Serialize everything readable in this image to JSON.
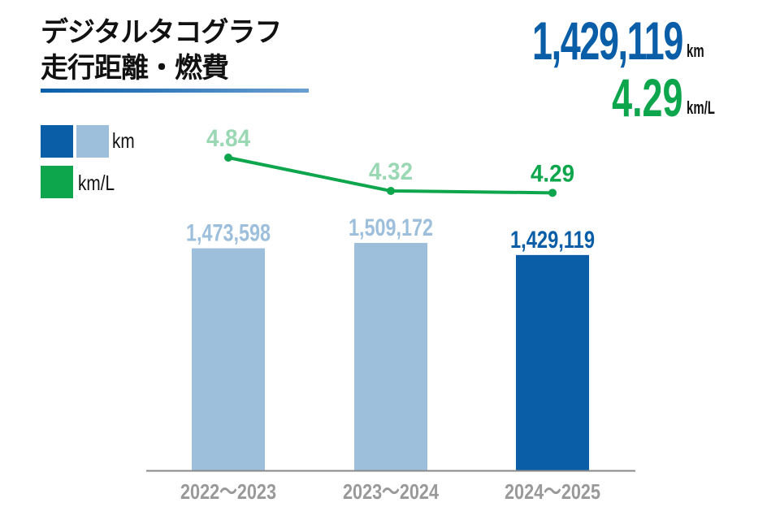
{
  "title": {
    "line1": "デジタルタコグラフ",
    "line2": "走行距離・燃費"
  },
  "summary": {
    "distance": "1,429,119",
    "distance_unit": "km",
    "fuel_economy": "4.29",
    "fuel_economy_unit": "km/L"
  },
  "legend": {
    "km": "km",
    "kmL": "km/L"
  },
  "colors": {
    "current_bar": "#0a5ea8",
    "past_bar": "#9dbfdc",
    "line": "#0ea64d",
    "past_line_label": "#9ad8b4",
    "axis": "#888888",
    "tick_label": "#999999"
  },
  "chart_data": {
    "type": "bar+line",
    "categories": [
      "2022～2023",
      "2023～2024",
      "2024～2025"
    ],
    "series": [
      {
        "name": "km",
        "type": "bar",
        "values": [
          1473598,
          1509172,
          1429119
        ],
        "labels": [
          "1,473,598",
          "1,509,172",
          "1,429,119"
        ]
      },
      {
        "name": "km/L",
        "type": "line",
        "values": [
          4.84,
          4.32,
          4.29
        ],
        "labels": [
          "4.84",
          "4.32",
          "4.29"
        ]
      }
    ],
    "grid": false,
    "legend_position": "top-left"
  }
}
